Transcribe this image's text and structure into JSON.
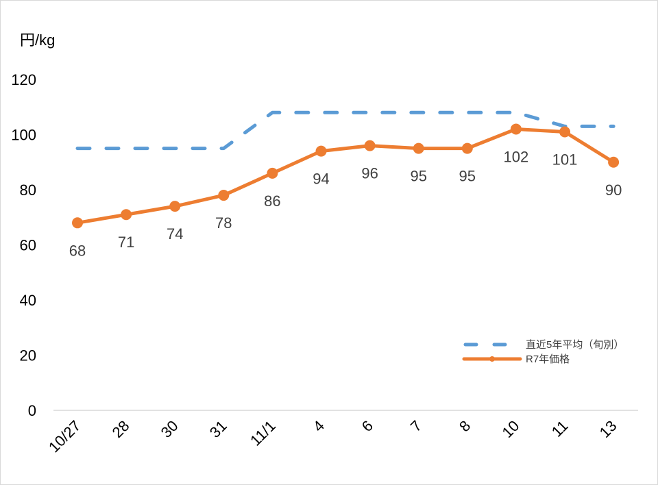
{
  "chart_data": {
    "type": "line",
    "title": "",
    "ylabel": "円/kg",
    "xlabel": "",
    "ylim": [
      0,
      120
    ],
    "yticks": [
      0,
      20,
      40,
      60,
      80,
      100,
      120
    ],
    "grid": false,
    "legend_position": "lower-right inside plot",
    "categories": [
      "10/27",
      "28",
      "30",
      "31",
      "11/1",
      "4",
      "6",
      "7",
      "8",
      "10",
      "11",
      "13"
    ],
    "series": [
      {
        "name": "直近5年平均（旬別）",
        "style": "dashed",
        "color": "#5B9BD5",
        "values": [
          95,
          95,
          95,
          95,
          108,
          108,
          108,
          108,
          108,
          108,
          103,
          103
        ]
      },
      {
        "name": "R7年価格",
        "style": "solid-with-markers",
        "color": "#ED7D31",
        "values": [
          68,
          71,
          74,
          78,
          86,
          94,
          96,
          95,
          95,
          102,
          101,
          90
        ],
        "data_labels": [
          "68",
          "71",
          "74",
          "78",
          "86",
          "94",
          "96",
          "95",
          "95",
          "102",
          "101",
          "90"
        ]
      }
    ]
  },
  "unit_label": "円/kg",
  "legend": {
    "items": [
      {
        "label": "直近5年平均（旬別）",
        "color": "#5B9BD5"
      },
      {
        "label": "R7年価格",
        "color": "#ED7D31"
      }
    ]
  }
}
